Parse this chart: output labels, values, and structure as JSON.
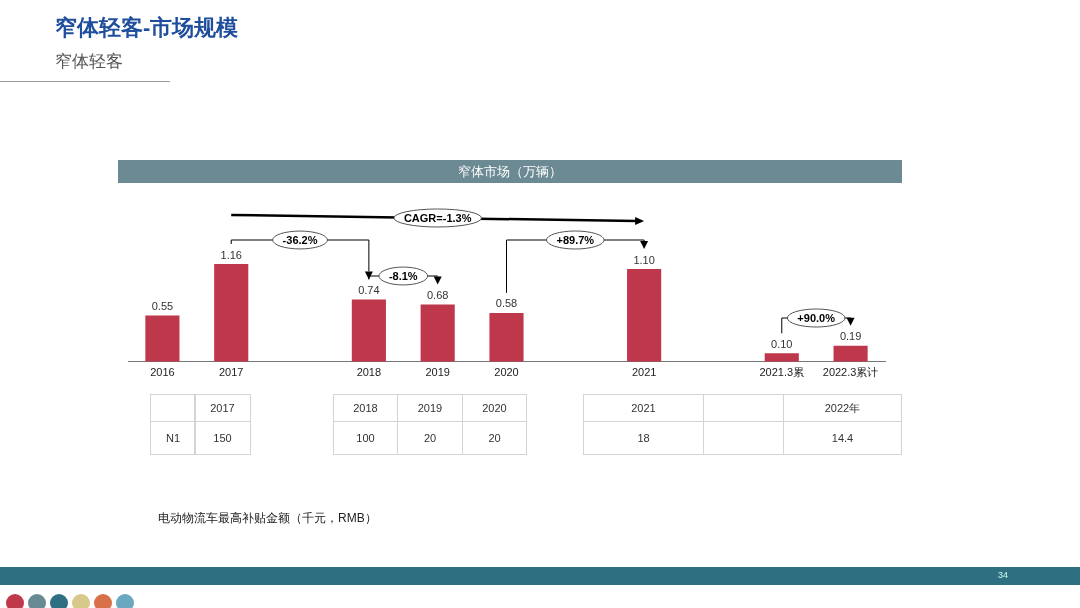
{
  "chart_data": [
    {
      "type": "bar",
      "title": "窄体轻客-市场规模",
      "subtitle": "窄体轻客",
      "categories": [
        "2016",
        "2017",
        null,
        "2018",
        "2019",
        "2020",
        null,
        "2021",
        null,
        "2021.3累",
        "2022.3累计"
      ],
      "values": [
        0.55,
        1.16,
        null,
        0.74,
        0.68,
        0.58,
        null,
        1.1,
        null,
        0.1,
        0.19
      ],
      "value_labels": [
        "0.55",
        "1.16",
        null,
        "0.74",
        "0.68",
        "0.58",
        null,
        "1.10",
        null,
        "0.10",
        "0.19"
      ],
      "color": "#be374a",
      "annotations": [
        "窄体市场（万辆）",
        "CAGR=-1.3%",
        "-36.2%",
        "-8.1%",
        "+89.7%",
        "+90.0%",
        "34"
      ]
    },
    {
      "type": "other",
      "title": "电动物流车最高补贴金额（千元，RMB）",
      "categories": [
        "2017",
        null,
        "2018",
        "2019",
        "2020",
        null,
        "2021",
        null,
        "2022年"
      ],
      "y_categories": [
        "N1"
      ],
      "annotations": [
        "150",
        "100",
        "20",
        "20",
        "18",
        "14.4"
      ]
    }
  ]
}
